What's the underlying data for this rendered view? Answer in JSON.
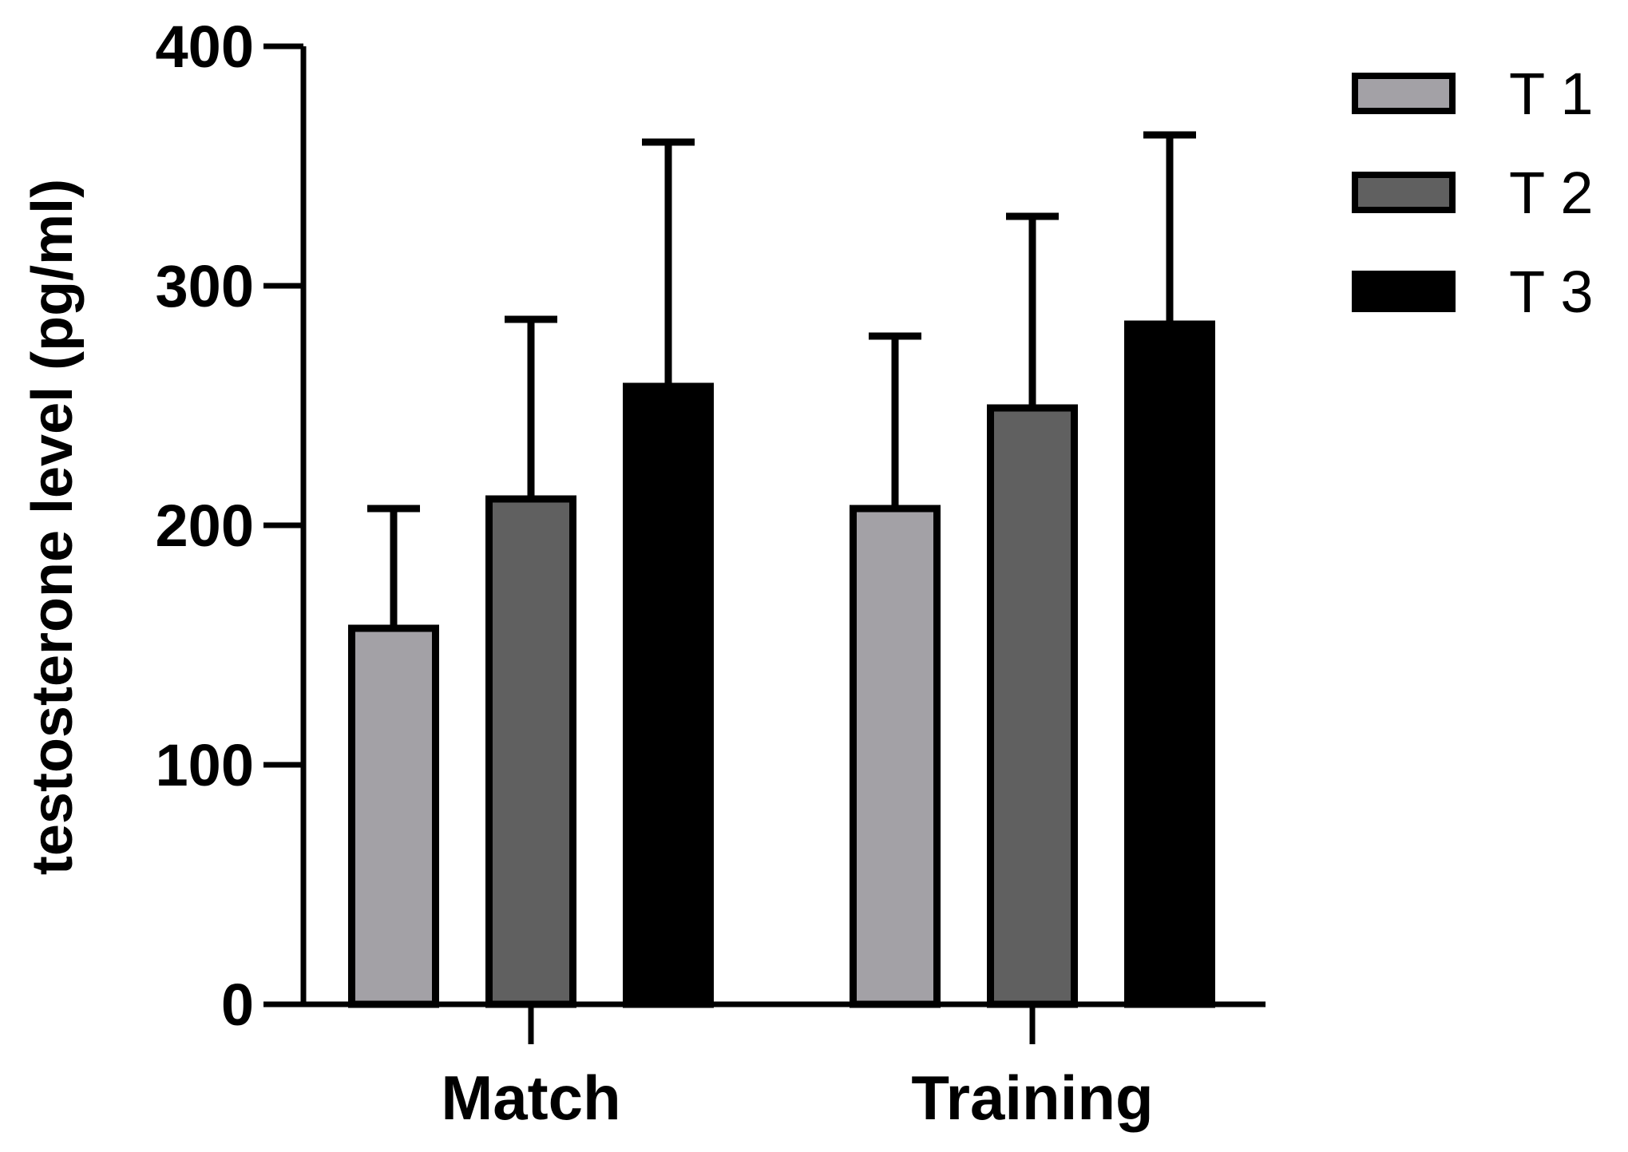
{
  "chart_data": {
    "type": "bar",
    "ylabel": "testosterone level (pg/ml)",
    "xlabel": "",
    "ylim": [
      0,
      400
    ],
    "yticks": [
      0,
      100,
      200,
      300,
      400
    ],
    "yticks_labels": [
      "0",
      "100",
      "200",
      "300",
      "400"
    ],
    "categories": [
      "Match",
      "Training"
    ],
    "series": [
      {
        "name": "T 1",
        "values": [
          157,
          207
        ],
        "errors": [
          50,
          72
        ],
        "color": "#a3a1a6"
      },
      {
        "name": "T 2",
        "values": [
          211,
          249
        ],
        "errors": [
          75,
          80
        ],
        "color": "#606060"
      },
      {
        "name": "T 3",
        "values": [
          258,
          284
        ],
        "errors": [
          102,
          79
        ],
        "color": "#000000"
      }
    ],
    "legend_position": "top-right",
    "grid": false
  }
}
